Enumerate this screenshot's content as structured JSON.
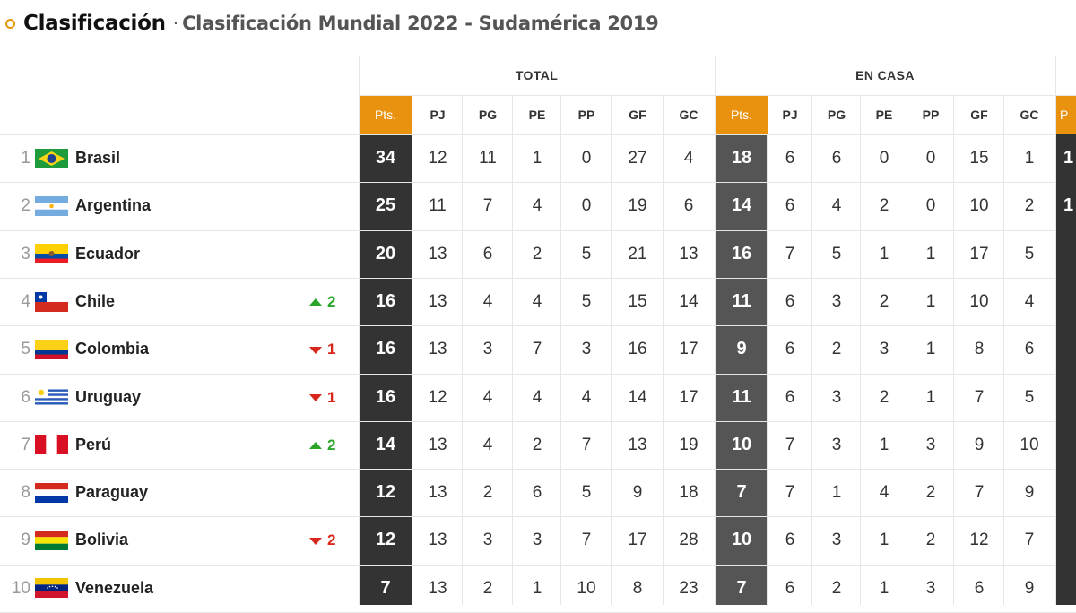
{
  "header": {
    "title": "Clasificación",
    "separator": "·",
    "subtitle": "Clasificación Mundial 2022 - Sudamérica 2019"
  },
  "groups": [
    {
      "label": "TOTAL"
    },
    {
      "label": "EN CASA"
    }
  ],
  "columns": [
    "Pts.",
    "PJ",
    "PG",
    "PE",
    "PP",
    "GF",
    "GC"
  ],
  "edge_next_header": "P",
  "edge_next_values": [
    "1",
    "1"
  ],
  "colors": {
    "accent": "#e8920f",
    "pts_total_bg": "#333333",
    "pts_home_bg": "#555555",
    "up": "#2aa52a",
    "down": "#d9261c"
  },
  "teams": [
    {
      "rank": "1",
      "name": "Brasil",
      "flag": "brazil-flag-icon",
      "trend": null,
      "total": [
        "34",
        "12",
        "11",
        "1",
        "0",
        "27",
        "4"
      ],
      "home": [
        "18",
        "6",
        "6",
        "0",
        "0",
        "15",
        "1"
      ]
    },
    {
      "rank": "2",
      "name": "Argentina",
      "flag": "argentina-flag-icon",
      "trend": null,
      "total": [
        "25",
        "11",
        "7",
        "4",
        "0",
        "19",
        "6"
      ],
      "home": [
        "14",
        "6",
        "4",
        "2",
        "0",
        "10",
        "2"
      ]
    },
    {
      "rank": "3",
      "name": "Ecuador",
      "flag": "ecuador-flag-icon",
      "trend": null,
      "total": [
        "20",
        "13",
        "6",
        "2",
        "5",
        "21",
        "13"
      ],
      "home": [
        "16",
        "7",
        "5",
        "1",
        "1",
        "17",
        "5"
      ]
    },
    {
      "rank": "4",
      "name": "Chile",
      "flag": "chile-flag-icon",
      "trend": {
        "dir": "up",
        "value": "2"
      },
      "total": [
        "16",
        "13",
        "4",
        "4",
        "5",
        "15",
        "14"
      ],
      "home": [
        "11",
        "6",
        "3",
        "2",
        "1",
        "10",
        "4"
      ]
    },
    {
      "rank": "5",
      "name": "Colombia",
      "flag": "colombia-flag-icon",
      "trend": {
        "dir": "down",
        "value": "1"
      },
      "total": [
        "16",
        "13",
        "3",
        "7",
        "3",
        "16",
        "17"
      ],
      "home": [
        "9",
        "6",
        "2",
        "3",
        "1",
        "8",
        "6"
      ]
    },
    {
      "rank": "6",
      "name": "Uruguay",
      "flag": "uruguay-flag-icon",
      "trend": {
        "dir": "down",
        "value": "1"
      },
      "total": [
        "16",
        "12",
        "4",
        "4",
        "4",
        "14",
        "17"
      ],
      "home": [
        "11",
        "6",
        "3",
        "2",
        "1",
        "7",
        "5"
      ]
    },
    {
      "rank": "7",
      "name": "Perú",
      "flag": "peru-flag-icon",
      "trend": {
        "dir": "up",
        "value": "2"
      },
      "total": [
        "14",
        "13",
        "4",
        "2",
        "7",
        "13",
        "19"
      ],
      "home": [
        "10",
        "7",
        "3",
        "1",
        "3",
        "9",
        "10"
      ]
    },
    {
      "rank": "8",
      "name": "Paraguay",
      "flag": "paraguay-flag-icon",
      "trend": null,
      "total": [
        "12",
        "13",
        "2",
        "6",
        "5",
        "9",
        "18"
      ],
      "home": [
        "7",
        "7",
        "1",
        "4",
        "2",
        "7",
        "9"
      ]
    },
    {
      "rank": "9",
      "name": "Bolivia",
      "flag": "bolivia-flag-icon",
      "trend": {
        "dir": "down",
        "value": "2"
      },
      "total": [
        "12",
        "13",
        "3",
        "3",
        "7",
        "17",
        "28"
      ],
      "home": [
        "10",
        "6",
        "3",
        "1",
        "2",
        "12",
        "7"
      ]
    },
    {
      "rank": "10",
      "name": "Venezuela",
      "flag": "venezuela-flag-icon",
      "trend": null,
      "total": [
        "7",
        "13",
        "2",
        "1",
        "10",
        "8",
        "23"
      ],
      "home": [
        "7",
        "6",
        "2",
        "1",
        "3",
        "6",
        "9"
      ]
    }
  ]
}
